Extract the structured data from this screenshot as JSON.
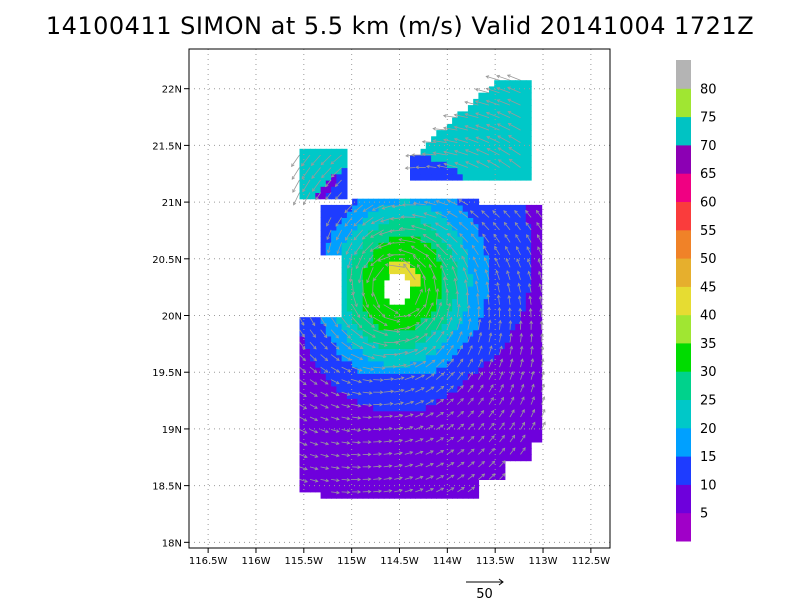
{
  "title": "14100411 SIMON at 5.5 km (m/s) Valid 20141004 1721Z",
  "chart_data": {
    "type": "heatmap",
    "subtype": "wind_speed_with_vectors",
    "storm": "SIMON",
    "level": "5.5 km",
    "units": "m/s",
    "valid": "20141004 1721Z",
    "xlim": [
      -116.7,
      -112.3
    ],
    "ylim": [
      17.95,
      22.35
    ],
    "x_ticks": [
      -116.5,
      -116,
      -115.5,
      -115,
      -114.5,
      -114,
      -113.5,
      -113,
      -112.5
    ],
    "x_tick_labels": [
      "116.5W",
      "116W",
      "115.5W",
      "115W",
      "114.5W",
      "114W",
      "113.5W",
      "113W",
      "112.5W"
    ],
    "y_ticks": [
      18,
      18.5,
      19,
      19.5,
      20,
      20.5,
      21,
      21.5,
      22
    ],
    "y_tick_labels": [
      "18N",
      "18.5N",
      "19N",
      "19.5N",
      "20N",
      "20.5N",
      "21N",
      "21.5N",
      "22N"
    ],
    "grid": true,
    "center": {
      "lon": -114.52,
      "lat": 20.24
    },
    "eye_radius_deg": 0.14,
    "colorbar": {
      "levels": [
        5,
        10,
        15,
        20,
        25,
        30,
        35,
        40,
        45,
        50,
        55,
        60,
        65,
        70,
        75,
        80
      ],
      "colors": [
        "#a000c8",
        "#6e00dc",
        "#1e3cff",
        "#00a0ff",
        "#00c8c8",
        "#00d28c",
        "#00dc00",
        "#a0e632",
        "#e6dc32",
        "#e6af2d",
        "#f08228",
        "#fa3c3c",
        "#f00082",
        "#8c00b4",
        "#00c3c3",
        "#a0e632",
        "#b4b4b4"
      ]
    },
    "reference_vector": {
      "value": 50,
      "label": "50"
    }
  }
}
